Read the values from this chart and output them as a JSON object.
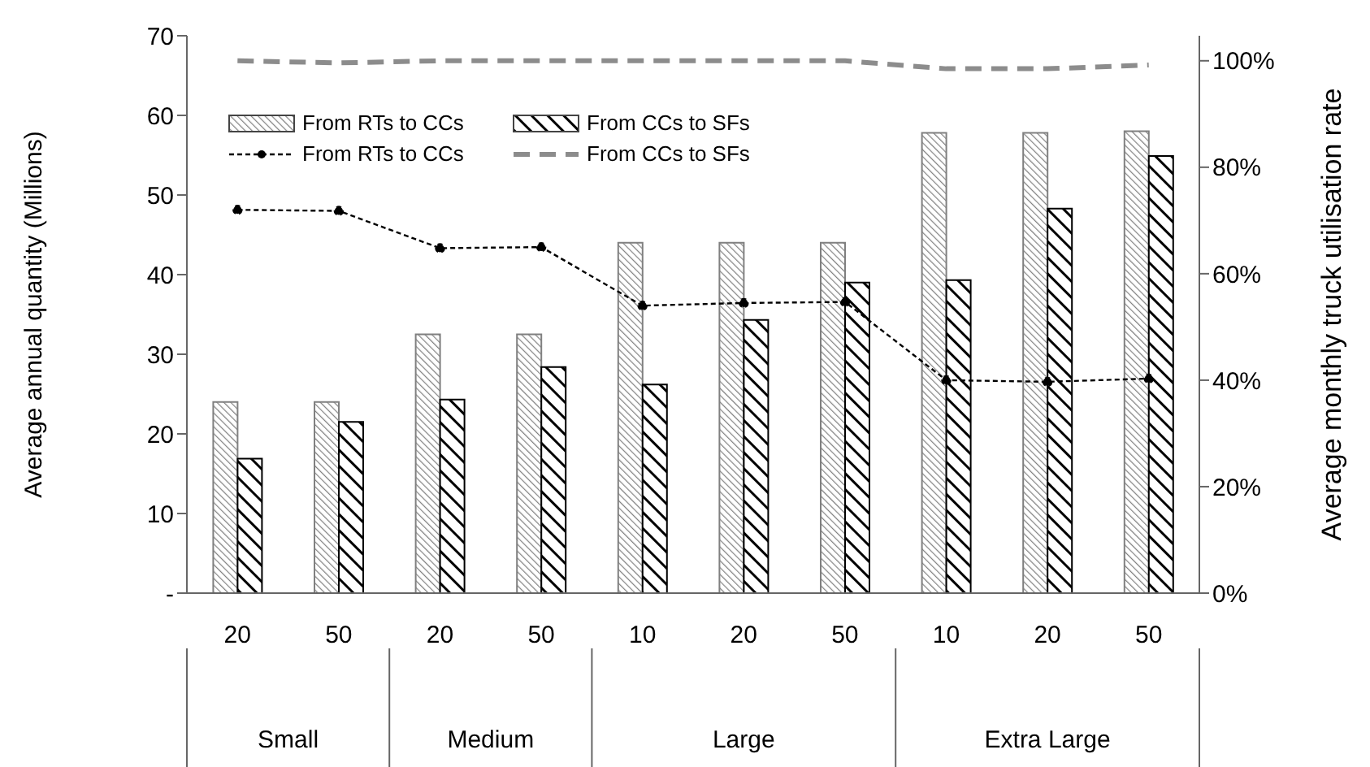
{
  "chart_data": {
    "type": "bar",
    "xlabel": null,
    "ylabel": "Average annual quantity (Millions)",
    "y2label": "Average monthly truck utilisation rate",
    "categories": [
      "20",
      "50",
      "20",
      "50",
      "10",
      "20",
      "50",
      "10",
      "20",
      "50"
    ],
    "annotations": [
      "Small",
      "Medium",
      "Large",
      "Extra Large"
    ],
    "ylim": [
      0,
      70
    ],
    "yticks": [
      {
        "value": 0,
        "label": "-"
      },
      10,
      20,
      30,
      40,
      50,
      60,
      70
    ],
    "y2lim": [
      0,
      104.7
    ],
    "y2ticks": [
      {
        "value": 0,
        "label": "0%"
      },
      {
        "value": 20,
        "label": "20%"
      },
      {
        "value": 40,
        "label": "40%"
      },
      {
        "value": 60,
        "label": "60%"
      },
      {
        "value": 80,
        "label": "80%"
      },
      {
        "value": 100,
        "label": "100%"
      }
    ],
    "legend": "top left",
    "series": [
      {
        "name": "From RTs to CCs",
        "color": "#808080",
        "values": [
          24,
          24,
          32.5,
          32.5,
          44,
          44,
          44,
          57.8,
          57.8,
          58
        ]
      },
      {
        "name": "From CCs to SFs",
        "color": "#000000",
        "values": [
          16.9,
          21.5,
          24.3,
          28.4,
          26.2,
          34.3,
          39,
          39.3,
          48.3,
          54.9
        ]
      },
      {
        "name": "From RTs to CCs",
        "type": "line",
        "axis": "y2",
        "color": "#000000",
        "marker": "circle",
        "line_style": "dotted",
        "values": [
          72,
          71.8,
          64.8,
          65,
          54,
          54.5,
          54.7,
          40,
          39.7,
          40.3
        ]
      },
      {
        "name": "From CCs to SFs",
        "type": "line",
        "axis": "y2",
        "color": "#8c8c8c",
        "marker": "none",
        "line_style": "dashed",
        "values": [
          100,
          99.6,
          100,
          100,
          100,
          100,
          100,
          98.5,
          98.5,
          99.2
        ]
      }
    ]
  }
}
